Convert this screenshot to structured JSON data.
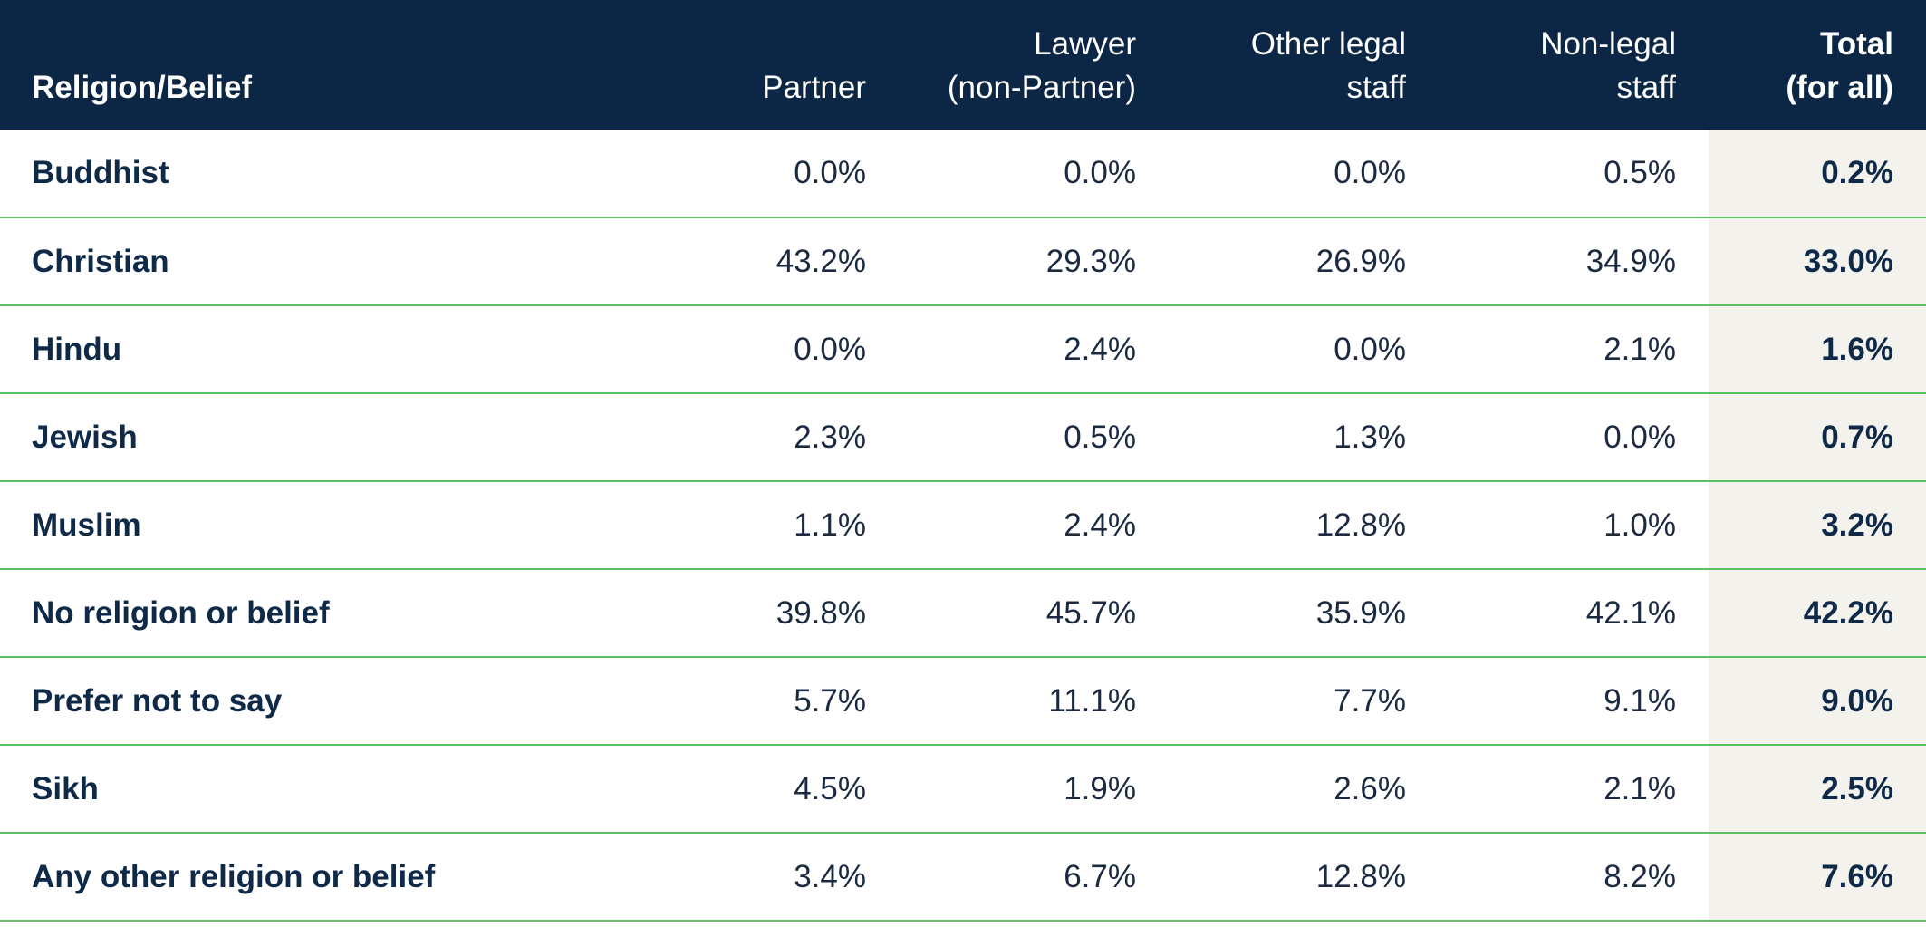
{
  "colors": {
    "header_bg": "#0c2746",
    "header_text": "#ffffff",
    "row_divider": "#5cbf63",
    "total_column_bg": "#f3f2ed",
    "body_text": "#1b2a40"
  },
  "chart_data": {
    "type": "table",
    "title": "",
    "columns": [
      {
        "key": "label",
        "lines": [
          "Religion/Belief"
        ]
      },
      {
        "key": "partner",
        "lines": [
          "Partner"
        ]
      },
      {
        "key": "lawyer",
        "lines": [
          "Lawyer",
          "(non-Partner)"
        ]
      },
      {
        "key": "other_legal",
        "lines": [
          "Other legal",
          "staff"
        ]
      },
      {
        "key": "non_legal",
        "lines": [
          "Non-legal",
          "staff"
        ]
      },
      {
        "key": "total",
        "lines": [
          "Total",
          "(for all)"
        ]
      }
    ],
    "rows": [
      {
        "label": "Buddhist",
        "values": [
          "0.0%",
          "0.0%",
          "0.0%",
          "0.5%",
          "0.2%"
        ]
      },
      {
        "label": "Christian",
        "values": [
          "43.2%",
          "29.3%",
          "26.9%",
          "34.9%",
          "33.0%"
        ]
      },
      {
        "label": "Hindu",
        "values": [
          "0.0%",
          "2.4%",
          "0.0%",
          "2.1%",
          "1.6%"
        ]
      },
      {
        "label": "Jewish",
        "values": [
          "2.3%",
          "0.5%",
          "1.3%",
          "0.0%",
          "0.7%"
        ]
      },
      {
        "label": "Muslim",
        "values": [
          "1.1%",
          "2.4%",
          "12.8%",
          "1.0%",
          "3.2%"
        ]
      },
      {
        "label": "No religion or belief",
        "values": [
          "39.8%",
          "45.7%",
          "35.9%",
          "42.1%",
          "42.2%"
        ]
      },
      {
        "label": "Prefer not to say",
        "values": [
          "5.7%",
          "11.1%",
          "7.7%",
          "9.1%",
          "9.0%"
        ]
      },
      {
        "label": "Sikh",
        "values": [
          "4.5%",
          "1.9%",
          "2.6%",
          "2.1%",
          "2.5%"
        ]
      },
      {
        "label": "Any other religion or belief",
        "values": [
          "3.4%",
          "6.7%",
          "12.8%",
          "8.2%",
          "7.6%"
        ]
      }
    ]
  }
}
